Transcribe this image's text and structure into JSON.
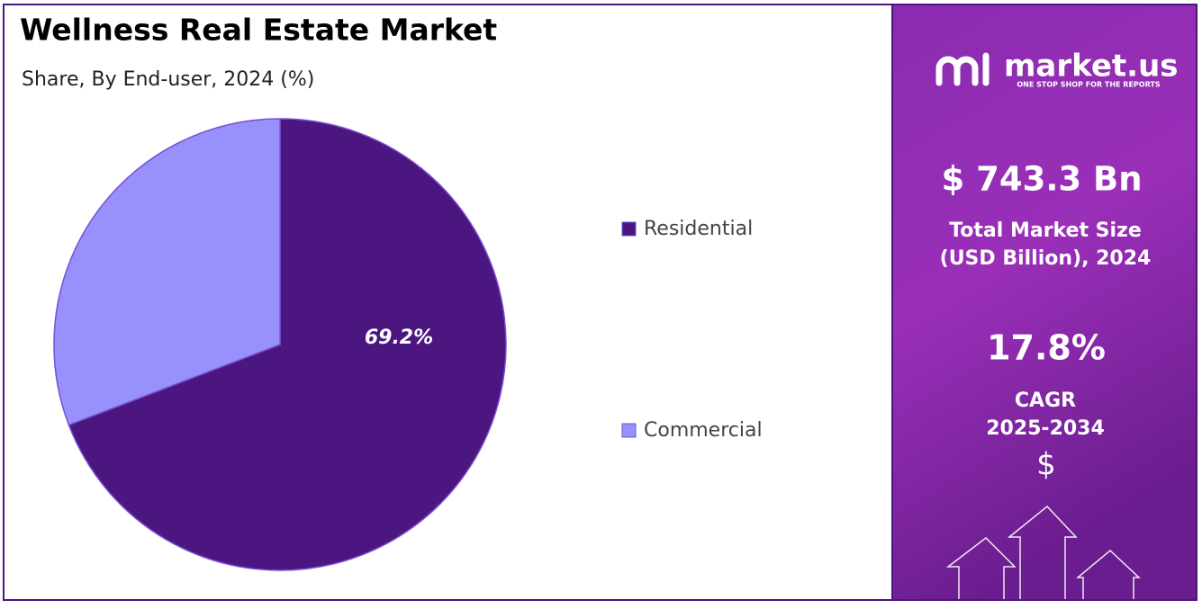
{
  "chart_data": {
    "type": "pie",
    "title": "Wellness Real Estate Market",
    "subtitle": "Share, By End-user, 2024 (%)",
    "categories": [
      "Residential",
      "Commercial"
    ],
    "values": [
      69.2,
      30.8
    ],
    "value_labels": [
      "69.2%",
      null
    ],
    "colors": [
      "#4b1680",
      "#9790fd"
    ],
    "legend": "right"
  },
  "side_panel": {
    "brand": "market.us",
    "tagline": "ONE STOP SHOP FOR THE REPORTS",
    "market_size": "$ 743.3 Bn",
    "market_size_label_1": "Total Market Size",
    "market_size_label_2": "(USD Billion), 2024",
    "cagr": "17.8%",
    "cagr_label": "CAGR",
    "cagr_period": "2025-2034",
    "currency_icon": "$"
  }
}
